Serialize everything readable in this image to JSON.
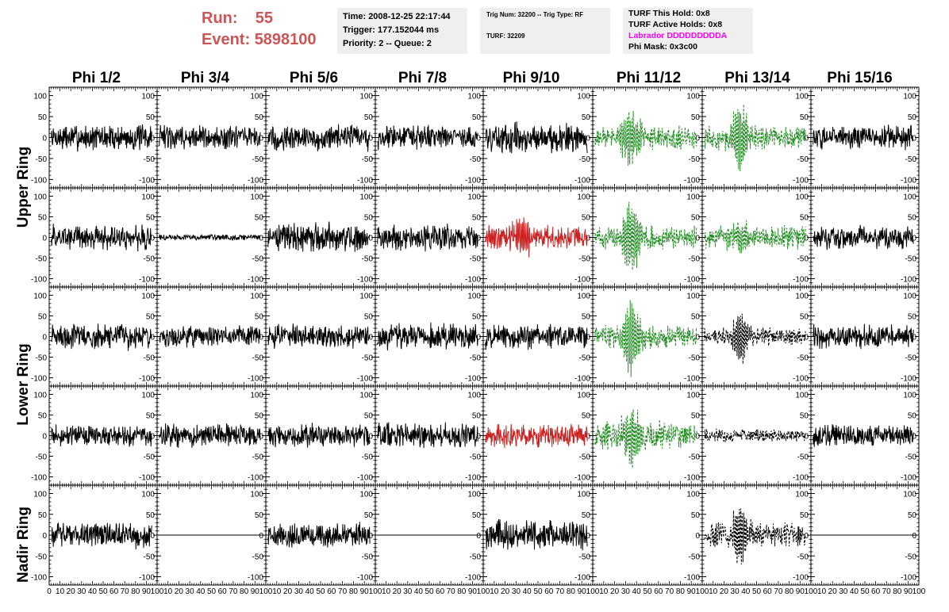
{
  "header": {
    "run_label": "Run:",
    "run_value": "55",
    "event_label": "Event:",
    "event_value": "5898100"
  },
  "info_box_time": {
    "line1": "Time: 2008-12-25 22:17:44",
    "line2": "Trigger: 177.152044 ms",
    "line3": "Priority: 2 -- Queue: 2"
  },
  "info_box_trig": {
    "line1": "Trig Num: 32200 -- Trig Type: RF",
    "line2": "TURF: 32209"
  },
  "info_box_turf": {
    "line1": "TURF This Hold: 0x8",
    "line2": "TURF Active Holds: 0x8",
    "line3": "Labrador DDDDDDDDDA",
    "line4": "Phi Mask: 0x3c00"
  },
  "colors": {
    "run_text": "#cc5555",
    "labrador": "#ff00ff",
    "trace_normal": "#000000",
    "trace_green": "#228b22",
    "trace_red": "#cc2222",
    "info_bg": "#efefef"
  },
  "chart_data": {
    "type": "line",
    "columns": [
      "Phi 1/2",
      "Phi 3/4",
      "Phi 5/6",
      "Phi 7/8",
      "Phi 9/10",
      "Phi 11/12",
      "Phi 13/14",
      "Phi 15/16"
    ],
    "ring_labels": [
      {
        "text": "Upper Ring",
        "rows": [
          0,
          1
        ]
      },
      {
        "text": "Lower Ring",
        "rows": [
          2,
          3
        ]
      },
      {
        "text": "Nadir Ring",
        "rows": [
          4
        ]
      }
    ],
    "xlim": [
      0,
      100
    ],
    "ylim": [
      -120,
      120
    ],
    "yticks": [
      100,
      50,
      0,
      -50,
      -100
    ],
    "ytick_labels": [
      "100",
      "50",
      "0",
      "-50",
      "-100"
    ],
    "xticks": [
      0,
      10,
      20,
      30,
      40,
      50,
      60,
      70,
      80,
      90,
      100
    ],
    "xtick_labels": [
      "0",
      "10",
      "20",
      "30",
      "40",
      "50",
      "60",
      "70",
      "80",
      "90",
      "100"
    ],
    "rows": [
      [
        {
          "color": "black",
          "style": "solid",
          "amp": 22,
          "burst": 0
        },
        {
          "color": "black",
          "style": "solid",
          "amp": 20,
          "burst": 0
        },
        {
          "color": "black",
          "style": "solid",
          "amp": 22,
          "burst": 0
        },
        {
          "color": "black",
          "style": "solid",
          "amp": 20,
          "burst": 0
        },
        {
          "color": "black",
          "style": "solid",
          "amp": 25,
          "burst": 0
        },
        {
          "color": "green",
          "style": "dashed",
          "amp": 20,
          "burst": 60
        },
        {
          "color": "green",
          "style": "dashed",
          "amp": 20,
          "burst": 70
        },
        {
          "color": "black",
          "style": "solid",
          "amp": 20,
          "burst": 0
        }
      ],
      [
        {
          "color": "black",
          "style": "solid",
          "amp": 22,
          "burst": 0
        },
        {
          "color": "black",
          "style": "solid",
          "amp": 5,
          "burst": 0
        },
        {
          "color": "black",
          "style": "solid",
          "amp": 25,
          "burst": 0
        },
        {
          "color": "black",
          "style": "solid",
          "amp": 22,
          "burst": 0
        },
        {
          "color": "red",
          "style": "solid",
          "amp": 20,
          "burst": 45
        },
        {
          "color": "green",
          "style": "dashed",
          "amp": 20,
          "burst": 85
        },
        {
          "color": "green",
          "style": "dashed",
          "amp": 20,
          "burst": 30
        },
        {
          "color": "black",
          "style": "solid",
          "amp": 20,
          "burst": 0
        }
      ],
      [
        {
          "color": "black",
          "style": "solid",
          "amp": 22,
          "burst": 0
        },
        {
          "color": "black",
          "style": "solid",
          "amp": 18,
          "burst": 0
        },
        {
          "color": "black",
          "style": "solid",
          "amp": 20,
          "burst": 0
        },
        {
          "color": "black",
          "style": "solid",
          "amp": 22,
          "burst": 0
        },
        {
          "color": "black",
          "style": "solid",
          "amp": 22,
          "burst": 0
        },
        {
          "color": "green",
          "style": "dashed",
          "amp": 20,
          "burst": 80
        },
        {
          "color": "black",
          "style": "dashed",
          "amp": 15,
          "burst": 60
        },
        {
          "color": "black",
          "style": "solid",
          "amp": 20,
          "burst": 0
        }
      ],
      [
        {
          "color": "black",
          "style": "solid",
          "amp": 18,
          "burst": 0
        },
        {
          "color": "black",
          "style": "solid",
          "amp": 20,
          "burst": 0
        },
        {
          "color": "black",
          "style": "solid",
          "amp": 20,
          "burst": 0
        },
        {
          "color": "black",
          "style": "solid",
          "amp": 22,
          "burst": 0
        },
        {
          "color": "red",
          "style": "solid",
          "amp": 20,
          "burst": 0
        },
        {
          "color": "green",
          "style": "dashed",
          "amp": 25,
          "burst": 55
        },
        {
          "color": "black",
          "style": "dashed",
          "amp": 12,
          "burst": 0
        },
        {
          "color": "black",
          "style": "solid",
          "amp": 18,
          "burst": 0
        }
      ],
      [
        {
          "color": "black",
          "style": "solid",
          "amp": 22,
          "burst": 0
        },
        {
          "color": "black",
          "style": "flat",
          "amp": 0,
          "burst": 0
        },
        {
          "color": "black",
          "style": "solid",
          "amp": 20,
          "burst": 0
        },
        {
          "color": "black",
          "style": "flat",
          "amp": 0,
          "burst": 0
        },
        {
          "color": "black",
          "style": "solid",
          "amp": 25,
          "burst": 0
        },
        {
          "color": "black",
          "style": "empty",
          "amp": 0,
          "burst": 0
        },
        {
          "color": "black",
          "style": "dashed",
          "amp": 20,
          "burst": 70
        },
        {
          "color": "black",
          "style": "flat",
          "amp": 0,
          "burst": 0
        }
      ]
    ]
  }
}
